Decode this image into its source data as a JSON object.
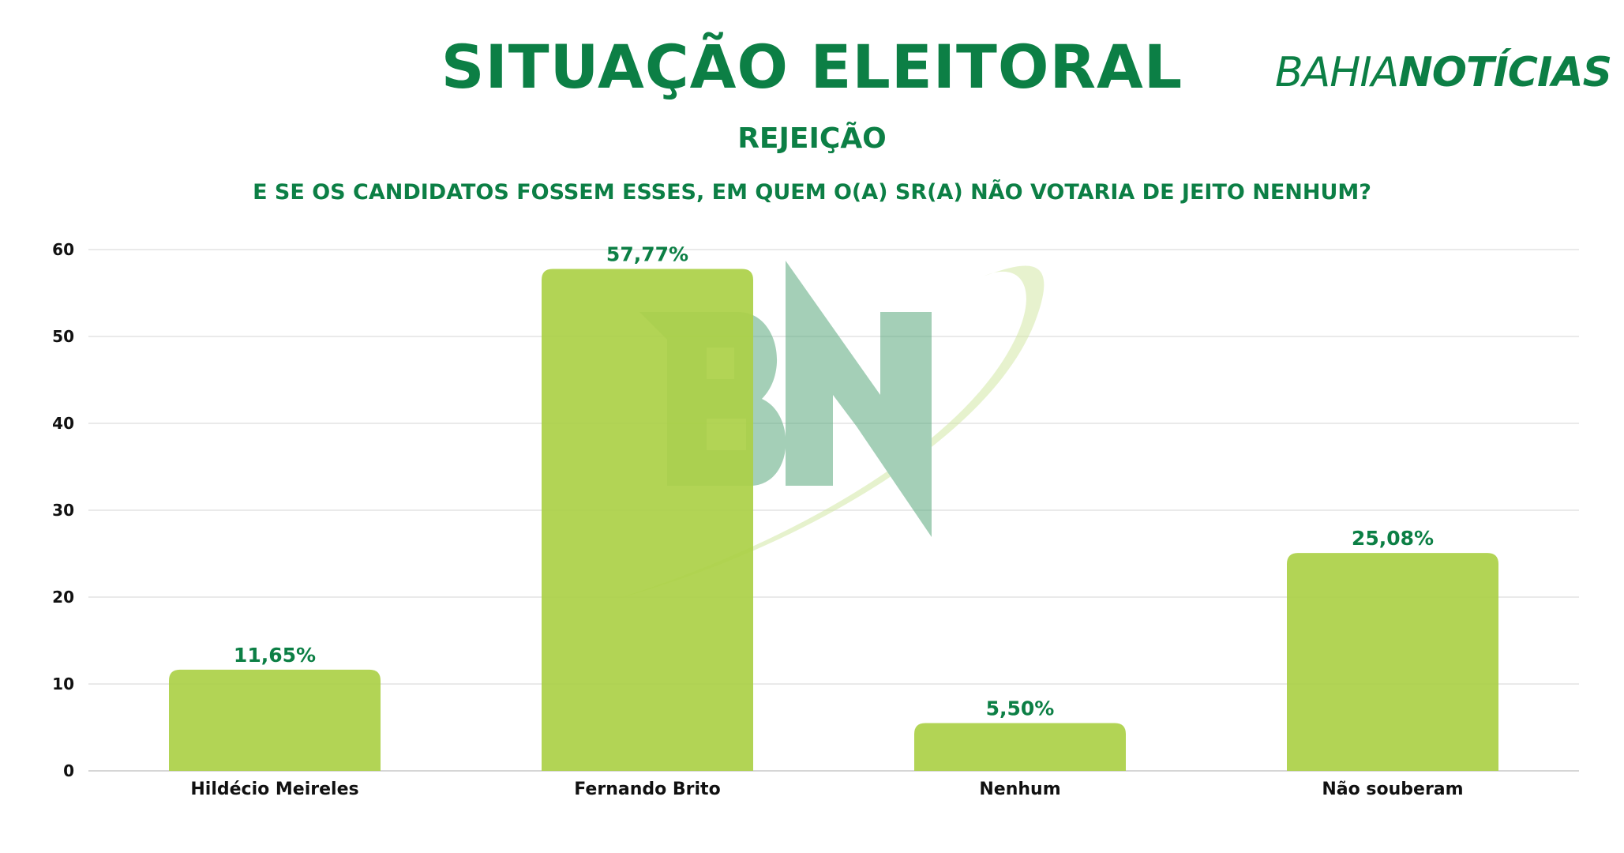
{
  "header": {
    "title": "SITUAÇÃO ELEITORAL",
    "subtitle": "REJEIÇÃO",
    "question": "E SE OS CANDIDATOS FOSSEM ESSES, EM QUEM O(A) SR(A) NÃO VOTARIA DE JEITO NENHUM?"
  },
  "logo": {
    "part1": "BAHIA",
    "part2": "NOTÍCIAS"
  },
  "colors": {
    "brand_green": "#0c7f45",
    "bar_fill": "#abd046",
    "grid": "#e3e3e3",
    "watermark_green": "#5aa97d",
    "watermark_swoosh": "#d3e8a6"
  },
  "chart_data": {
    "type": "bar",
    "categories": [
      "Hildécio Meireles",
      "Fernando Brito",
      "Nenhum",
      "Não souberam"
    ],
    "values": [
      11.65,
      57.77,
      5.5,
      25.08
    ],
    "value_labels": [
      "11,65%",
      "57,77%",
      "5,50%",
      "25,08%"
    ],
    "yticks": [
      "0",
      "10",
      "20",
      "30",
      "40",
      "50",
      "60"
    ],
    "ylim": [
      0,
      60
    ],
    "grid": true
  }
}
